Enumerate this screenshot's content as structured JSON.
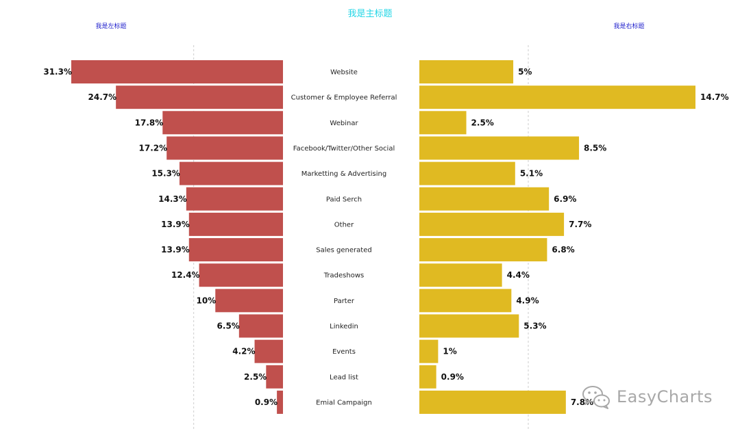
{
  "title": "我是主标题",
  "left_title": "我是左标题",
  "right_title": "我是右标题",
  "colors": {
    "title": "#22d6e6",
    "side_titles": "#2222cc",
    "left_bar": "#c0504d",
    "right_bar": "#e0ba22",
    "guide": "#cccccc"
  },
  "watermark": {
    "icon": "wechat-icon",
    "text": "EasyCharts"
  },
  "chart_data": {
    "type": "bar",
    "orientation": "horizontal",
    "layout": "back-to-back",
    "categories": [
      "Website",
      "Customer & Employee Referral",
      "Webinar",
      "Facebook/Twitter/Other Social",
      "Marketting & Advertising",
      "Paid Serch",
      "Other",
      "Sales generated",
      "Tradeshows",
      "Parter",
      "Linkedin",
      "Events",
      "Lead list",
      "Emial Campaign"
    ],
    "series": [
      {
        "side": "left",
        "values": [
          31.3,
          24.7,
          17.8,
          17.2,
          15.3,
          14.3,
          13.9,
          13.9,
          12.4,
          10,
          6.5,
          4.2,
          2.5,
          0.9
        ],
        "labels": [
          "31.3%",
          "24.7%",
          "17.8%",
          "17.2%",
          "15.3%",
          "14.3%",
          "13.9%",
          "13.9%",
          "12.4%",
          "10%",
          "6.5%",
          "4.2%",
          "2.5%",
          "0.9%"
        ]
      },
      {
        "side": "right",
        "values": [
          5,
          14.7,
          2.5,
          8.5,
          5.1,
          6.9,
          7.7,
          6.8,
          4.4,
          4.9,
          5.3,
          1,
          0.9,
          7.8
        ],
        "labels": [
          "5%",
          "14.7%",
          "2.5%",
          "8.5%",
          "5.1%",
          "6.9%",
          "7.7%",
          "6.8%",
          "4.4%",
          "4.9%",
          "5.3%",
          "1%",
          "0.9%",
          "7.8%"
        ]
      }
    ],
    "left_xlim": [
      0,
      31.3
    ],
    "right_xlim": [
      0,
      14.7
    ],
    "guide_lines": {
      "left": 13.2,
      "right": 5.8
    },
    "grid": false,
    "legend": "none"
  }
}
